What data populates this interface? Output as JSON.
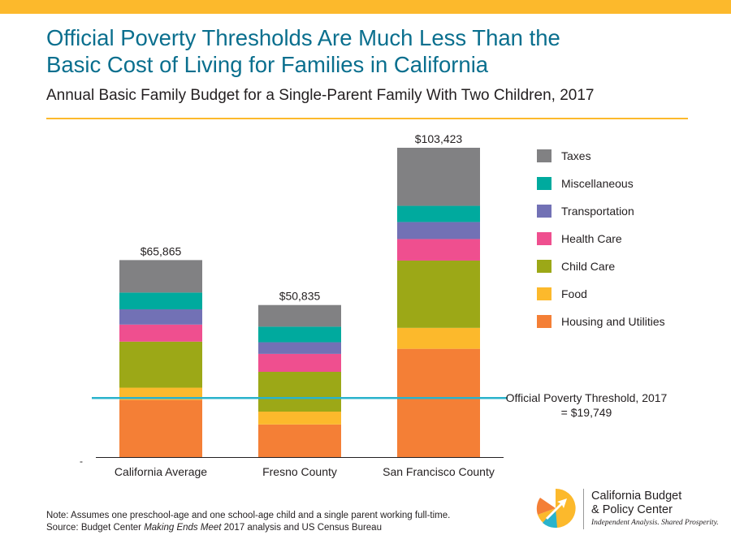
{
  "header": {
    "title_line1": "Official Poverty Thresholds Are Much Less Than the",
    "title_line2": "Basic Cost of Living for Families in California",
    "subtitle": "Annual Basic Family Budget for a Single-Parent Family With Two Children, 2017"
  },
  "chart_data": {
    "type": "bar",
    "stacked": true,
    "categories": [
      "California Average",
      "Fresno County",
      "San Francisco County"
    ],
    "totals": [
      65865,
      50835,
      103423
    ],
    "total_labels": [
      "$65,865",
      "$50,835",
      "$103,423"
    ],
    "ylim": [
      0,
      103423
    ],
    "y_tick_label": "-",
    "grid": false,
    "legend_position": "right",
    "series": [
      {
        "name": "Housing and Utilities",
        "color": "#f47f36",
        "values": [
          19100,
          10900,
          36200
        ]
      },
      {
        "name": "Food",
        "color": "#fcb92c",
        "values": [
          4100,
          4300,
          7000
        ]
      },
      {
        "name": "Child Care",
        "color": "#9ca817",
        "values": [
          15400,
          13300,
          22500
        ]
      },
      {
        "name": "Health Care",
        "color": "#ef4f8f",
        "values": [
          5700,
          6000,
          7200
        ]
      },
      {
        "name": "Transportation",
        "color": "#7271b5",
        "values": [
          5100,
          3900,
          5700
        ]
      },
      {
        "name": "Miscellaneous",
        "color": "#00aa9e",
        "values": [
          5600,
          5200,
          5400
        ]
      },
      {
        "name": "Taxes",
        "color": "#818183",
        "values": [
          10865,
          7235,
          19423
        ]
      }
    ],
    "reference_line": {
      "value": 19749,
      "label_line1": "Official Poverty Threshold, 2017",
      "label_line2": "= $19,749",
      "color": "#2ab3cc"
    }
  },
  "footer": {
    "note": "Note: Assumes one preschool-age and one school-age child and a single parent working full-time.",
    "source_prefix": "Source: Budget Center ",
    "source_italic": "Making Ends Meet",
    "source_suffix": " 2017 analysis and US Census Bureau"
  },
  "logo": {
    "line1": "California Budget",
    "line2": "& Policy Center",
    "tagline": "Independent Analysis. Shared Prosperity."
  }
}
